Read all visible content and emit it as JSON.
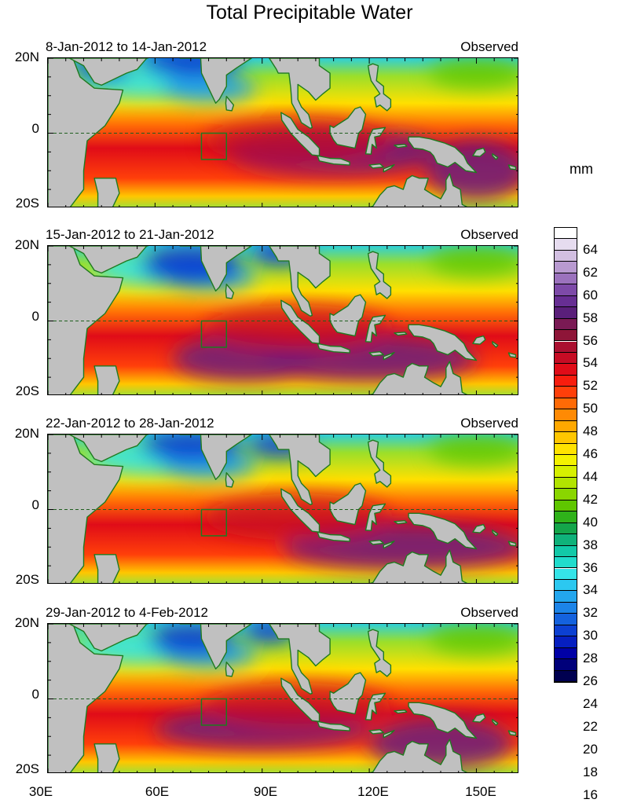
{
  "title": "Total Precipitable Water",
  "units": "mm",
  "panels": [
    {
      "dates": "8-Jan-2012 to 14-Jan-2012",
      "tag": "Observed"
    },
    {
      "dates": "15-Jan-2012 to 21-Jan-2012",
      "tag": "Observed"
    },
    {
      "dates": "22-Jan-2012 to 28-Jan-2012",
      "tag": "Observed"
    },
    {
      "dates": "29-Jan-2012 to 4-Feb-2012",
      "tag": "Observed"
    }
  ],
  "lat_labels": [
    "20N",
    "0",
    "20S"
  ],
  "lon_labels": [
    "30E",
    "60E",
    "90E",
    "120E",
    "150E"
  ],
  "colorbar": {
    "levels": [
      "64",
      "62",
      "60",
      "58",
      "56",
      "54",
      "52",
      "50",
      "48",
      "46",
      "44",
      "42",
      "40",
      "38",
      "36",
      "34",
      "32",
      "30",
      "28",
      "26",
      "24",
      "22",
      "20",
      "18",
      "16"
    ],
    "colors": [
      "#ffffff",
      "#e6dcef",
      "#d2bfe1",
      "#b89ad0",
      "#9b72bd",
      "#7d4aa8",
      "#672e93",
      "#5a1f7a",
      "#7a1a54",
      "#8e1538",
      "#aa1030",
      "#c60c24",
      "#e00c18",
      "#f71d0e",
      "#ff3f0a",
      "#ff6a06",
      "#ff8a04",
      "#ffa800",
      "#ffc600",
      "#ffe200",
      "#f4f200",
      "#d6f000",
      "#b2e400",
      "#8ad600",
      "#5fc600",
      "#2fb21a",
      "#14a54a",
      "#0fb27a",
      "#12c9a8",
      "#20dccc",
      "#35e4e8",
      "#2cc8f0",
      "#23a6ee",
      "#1c84e8",
      "#1462de",
      "#0c40d2",
      "#061fc0",
      "#0000a6",
      "#00007a",
      "#000050"
    ]
  }
}
